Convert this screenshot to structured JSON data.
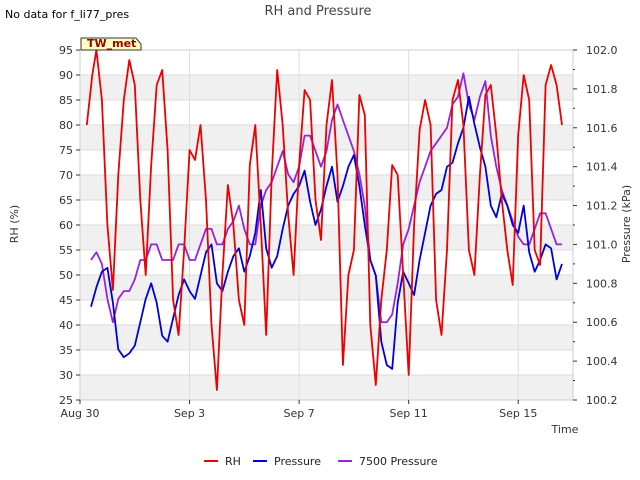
{
  "chart_data": {
    "type": "line",
    "title": "RH and Pressure",
    "note": "No data for f_li77_pres",
    "badge": "TW_met",
    "xlabel": "Time",
    "ylabel_left": "RH (%)",
    "ylabel_right": "Pressure (kPa)",
    "x_ticks": [
      "Aug 30",
      "Sep 3",
      "Sep 7",
      "Sep 11",
      "Sep 15"
    ],
    "x_tick_days": [
      0,
      4,
      8,
      12,
      16
    ],
    "xlim_days": [
      0,
      18
    ],
    "ylim_left": [
      25,
      95
    ],
    "ylim_right": [
      100.2,
      102.0
    ],
    "left_ticks": [
      25,
      30,
      35,
      40,
      45,
      50,
      55,
      60,
      65,
      70,
      75,
      80,
      85,
      90,
      95
    ],
    "right_ticks": [
      100.2,
      100.4,
      100.6,
      100.8,
      101.0,
      101.2,
      101.4,
      101.6,
      101.8,
      102.0
    ],
    "right_tick_labels": [
      "100.2",
      "100.4",
      "100.6",
      "100.8",
      "101.0",
      "101.2",
      "101.4",
      "101.6",
      "101.8",
      "102.0"
    ],
    "grid": true,
    "legend_position": "bottom",
    "series": [
      {
        "name": "RH",
        "axis": "left",
        "color": "#ee0000",
        "x": [
          0.25,
          0.45,
          0.6,
          0.8,
          1.0,
          1.2,
          1.4,
          1.6,
          1.8,
          2.0,
          2.2,
          2.4,
          2.6,
          2.8,
          3.0,
          3.2,
          3.4,
          3.6,
          3.8,
          4.0,
          4.2,
          4.4,
          4.6,
          4.8,
          5.0,
          5.2,
          5.4,
          5.6,
          5.8,
          6.0,
          6.2,
          6.4,
          6.6,
          6.8,
          7.0,
          7.2,
          7.4,
          7.6,
          7.8,
          8.0,
          8.2,
          8.4,
          8.6,
          8.8,
          9.0,
          9.2,
          9.4,
          9.6,
          9.8,
          10.0,
          10.2,
          10.4,
          10.6,
          10.8,
          11.0,
          11.2,
          11.4,
          11.6,
          11.8,
          12.0,
          12.2,
          12.4,
          12.6,
          12.8,
          13.0,
          13.2,
          13.4,
          13.6,
          13.8,
          14.0,
          14.2,
          14.4,
          14.6,
          14.8,
          15.0,
          15.2,
          15.4,
          15.6,
          15.8,
          16.0,
          16.2,
          16.4,
          16.6,
          16.8,
          17.0,
          17.2,
          17.4,
          17.6
        ],
        "y": [
          80,
          90,
          95,
          85,
          60,
          47,
          70,
          85,
          93,
          88,
          65,
          50,
          72,
          88,
          91,
          75,
          45,
          38,
          55,
          75,
          73,
          80,
          65,
          40,
          27,
          50,
          68,
          60,
          45,
          40,
          72,
          80,
          60,
          38,
          70,
          91,
          80,
          62,
          50,
          72,
          87,
          85,
          65,
          57,
          80,
          89,
          70,
          32,
          50,
          55,
          86,
          82,
          40,
          28,
          45,
          55,
          72,
          70,
          50,
          30,
          60,
          79,
          85,
          80,
          45,
          38,
          55,
          85,
          89,
          80,
          55,
          50,
          70,
          86,
          88,
          78,
          65,
          55,
          48,
          78,
          90,
          85,
          55,
          52,
          88,
          92,
          88,
          80
        ],
        "y_smooth_hint": "estimated"
      },
      {
        "name": "Pressure",
        "axis": "right",
        "color": "#0000dd",
        "x": [
          0.4,
          0.6,
          0.8,
          1.0,
          1.2,
          1.4,
          1.6,
          1.8,
          2.0,
          2.2,
          2.4,
          2.6,
          2.8,
          3.0,
          3.2,
          3.4,
          3.6,
          3.8,
          4.0,
          4.2,
          4.4,
          4.6,
          4.8,
          5.0,
          5.2,
          5.4,
          5.6,
          5.8,
          6.0,
          6.2,
          6.4,
          6.6,
          6.8,
          7.0,
          7.2,
          7.4,
          7.6,
          7.8,
          8.0,
          8.2,
          8.4,
          8.6,
          8.8,
          9.0,
          9.2,
          9.4,
          9.6,
          9.8,
          10.0,
          10.2,
          10.4,
          10.6,
          10.8,
          11.0,
          11.2,
          11.4,
          11.6,
          11.8,
          12.0,
          12.2,
          12.4,
          12.6,
          12.8,
          13.0,
          13.2,
          13.4,
          13.6,
          13.8,
          14.0,
          14.2,
          14.4,
          14.6,
          14.8,
          15.0,
          15.2,
          15.4,
          15.6,
          15.8,
          16.0,
          16.2,
          16.4,
          16.6,
          16.8,
          17.0,
          17.2,
          17.4,
          17.6
        ],
        "y": [
          100.68,
          100.78,
          100.86,
          100.88,
          100.7,
          100.46,
          100.42,
          100.44,
          100.48,
          100.6,
          100.72,
          100.8,
          100.7,
          100.53,
          100.5,
          100.62,
          100.74,
          100.82,
          100.76,
          100.72,
          100.84,
          100.96,
          101.0,
          100.8,
          100.76,
          100.86,
          100.94,
          100.98,
          100.86,
          100.94,
          101.06,
          101.28,
          100.98,
          100.88,
          100.94,
          101.08,
          101.2,
          101.26,
          101.3,
          101.38,
          101.22,
          101.1,
          101.18,
          101.3,
          101.4,
          101.22,
          101.3,
          101.4,
          101.46,
          101.3,
          101.1,
          100.92,
          100.84,
          100.5,
          100.38,
          100.36,
          100.7,
          100.86,
          100.8,
          100.74,
          100.92,
          101.06,
          101.2,
          101.26,
          101.28,
          101.4,
          101.42,
          101.52,
          101.6,
          101.76,
          101.62,
          101.5,
          101.4,
          101.2,
          101.14,
          101.26,
          101.2,
          101.1,
          101.06,
          101.2,
          100.96,
          100.86,
          100.92,
          101.0,
          100.98,
          100.82,
          100.9
        ]
      },
      {
        "name": "7500 Pressure",
        "axis": "right",
        "color": "#9922dd",
        "x": [
          0.4,
          0.6,
          0.8,
          1.0,
          1.2,
          1.4,
          1.6,
          1.8,
          2.0,
          2.2,
          2.4,
          2.6,
          2.8,
          3.0,
          3.2,
          3.4,
          3.6,
          3.8,
          4.0,
          4.2,
          4.4,
          4.6,
          4.8,
          5.0,
          5.2,
          5.4,
          5.6,
          5.8,
          6.0,
          6.2,
          6.4,
          6.6,
          6.8,
          7.0,
          7.2,
          7.4,
          7.6,
          7.8,
          8.0,
          8.2,
          8.4,
          8.6,
          8.8,
          9.0,
          9.2,
          9.4,
          9.6,
          9.8,
          10.0,
          10.2,
          10.4,
          10.6,
          10.8,
          11.0,
          11.2,
          11.4,
          11.6,
          11.8,
          12.0,
          12.2,
          12.4,
          12.6,
          12.8,
          13.0,
          13.2,
          13.4,
          13.6,
          13.8,
          14.0,
          14.2,
          14.4,
          14.6,
          14.8,
          15.0,
          15.2,
          15.4,
          15.6,
          15.8,
          16.0,
          16.2,
          16.4,
          16.6,
          16.8,
          17.0,
          17.2,
          17.4,
          17.6
        ],
        "y": [
          100.92,
          100.96,
          100.9,
          100.72,
          100.6,
          100.72,
          100.76,
          100.76,
          100.82,
          100.92,
          100.92,
          101.0,
          101.0,
          100.92,
          100.92,
          100.92,
          101.0,
          101.0,
          100.92,
          100.92,
          101.0,
          101.08,
          101.08,
          101.0,
          101.0,
          101.08,
          101.12,
          101.2,
          101.08,
          101.0,
          101.0,
          101.2,
          101.28,
          101.32,
          101.4,
          101.48,
          101.36,
          101.32,
          101.4,
          101.56,
          101.56,
          101.48,
          101.4,
          101.48,
          101.64,
          101.72,
          101.64,
          101.56,
          101.48,
          101.36,
          101.2,
          100.92,
          100.84,
          100.6,
          100.6,
          100.64,
          100.8,
          101.0,
          101.08,
          101.2,
          101.32,
          101.4,
          101.48,
          101.52,
          101.56,
          101.6,
          101.72,
          101.76,
          101.88,
          101.72,
          101.64,
          101.76,
          101.84,
          101.56,
          101.4,
          101.28,
          101.2,
          101.12,
          101.04,
          101.0,
          101.0,
          101.08,
          101.16,
          101.16,
          101.08,
          101.0,
          101.0
        ]
      }
    ]
  }
}
